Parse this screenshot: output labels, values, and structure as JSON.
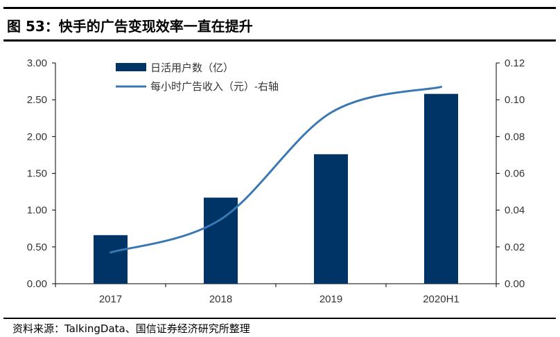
{
  "header": {
    "title": "图 53：快手的广告变现效率一直在提升"
  },
  "footer": {
    "source": "资料来源：TalkingData、国信证券经济研究所整理"
  },
  "chart_data": {
    "type": "bar+line",
    "categories": [
      "2017",
      "2018",
      "2019",
      "2020H1"
    ],
    "series": [
      {
        "name": "日活用户数（亿）",
        "type": "bar",
        "axis": "left",
        "color": "#003366",
        "values": [
          0.66,
          1.17,
          1.76,
          2.58
        ]
      },
      {
        "name": "每小时广告收入（元）-右轴",
        "type": "line",
        "axis": "right",
        "color": "#3a78b4",
        "values": [
          0.017,
          0.035,
          0.093,
          0.107
        ]
      }
    ],
    "left_axis": {
      "range": [
        0,
        3
      ],
      "ticks": [
        "0.00",
        "0.50",
        "1.00",
        "1.50",
        "2.00",
        "2.50",
        "3.00"
      ]
    },
    "right_axis": {
      "range": [
        0,
        0.12
      ],
      "ticks": [
        "0.00",
        "0.02",
        "0.04",
        "0.06",
        "0.08",
        "0.10",
        "0.12"
      ]
    },
    "legend": "top-left",
    "grid": false
  }
}
